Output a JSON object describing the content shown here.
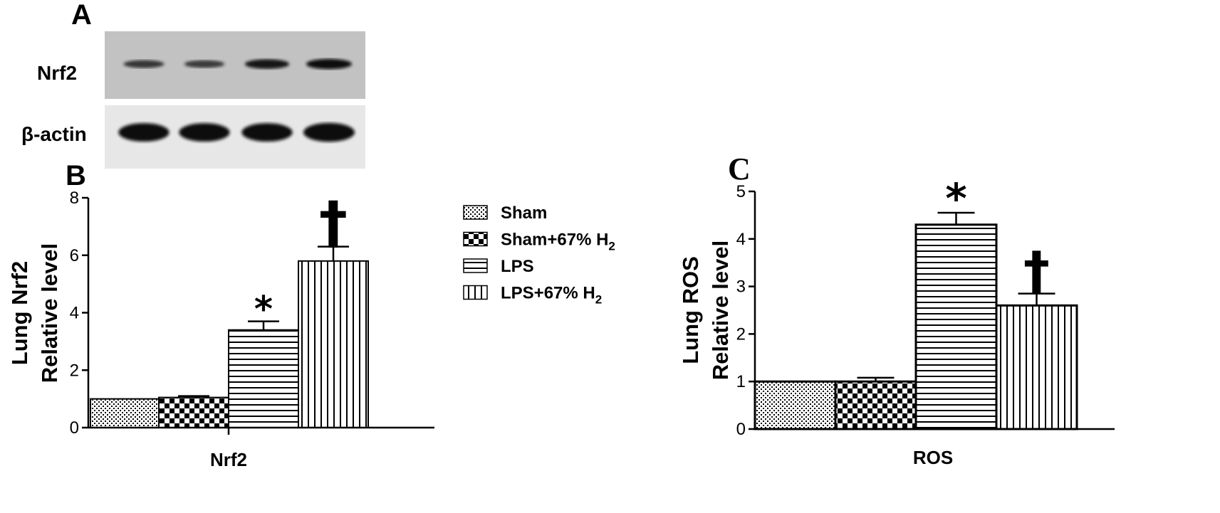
{
  "panels": {
    "A": "A",
    "B": "B",
    "C": "C"
  },
  "blot": {
    "rows": [
      {
        "label": "Nrf2",
        "band_intensity": [
          0.45,
          0.4,
          0.85,
          1.0
        ]
      },
      {
        "label": "β-actin",
        "band_intensity": [
          0.95,
          0.95,
          0.95,
          1.0
        ]
      }
    ]
  },
  "legend": {
    "items": [
      {
        "name": "Sham",
        "pattern": "pat-dots"
      },
      {
        "name": "Sham+67% H",
        "sub": "2",
        "pattern": "pat-checker"
      },
      {
        "name": "LPS",
        "pattern": "pat-hlines"
      },
      {
        "name": "LPS+67% H",
        "sub": "2",
        "pattern": "pat-vlines"
      }
    ]
  },
  "chart_data": [
    {
      "type": "bar",
      "panel": "B",
      "categories": [
        "Sham",
        "Sham+67% H2",
        "LPS",
        "LPS+67% H2"
      ],
      "values": [
        1.0,
        1.05,
        3.4,
        5.8
      ],
      "errors": [
        0,
        0.05,
        0.3,
        0.5
      ],
      "sig_marks": [
        "",
        "",
        "*",
        "†"
      ],
      "xlabel": "Nrf2",
      "ylabel": [
        "Lung Nrf2",
        "Relative level"
      ],
      "ylim": [
        0,
        8
      ],
      "yticks": [
        0,
        2,
        4,
        6,
        8
      ],
      "grid": false
    },
    {
      "type": "bar",
      "panel": "C",
      "categories": [
        "Sham",
        "Sham+67% H2",
        "LPS",
        "LPS+67% H2"
      ],
      "values": [
        1.0,
        1.0,
        4.3,
        2.6
      ],
      "errors": [
        0,
        0.08,
        0.25,
        0.25
      ],
      "sig_marks": [
        "",
        "",
        "*",
        "†"
      ],
      "xlabel": "ROS",
      "ylabel": [
        "Lung ROS",
        "Relative level"
      ],
      "ylim": [
        0,
        5
      ],
      "yticks": [
        0,
        1,
        2,
        3,
        4,
        5
      ],
      "grid": false
    }
  ]
}
